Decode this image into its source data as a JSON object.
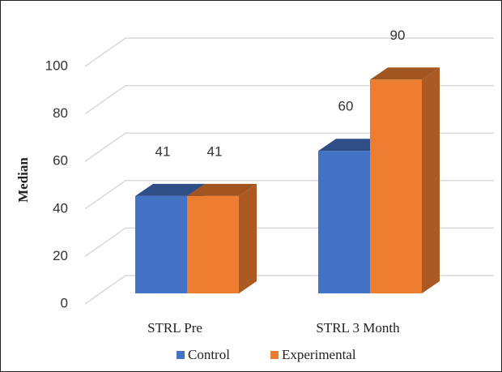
{
  "chart_data": {
    "type": "bar3d",
    "y_label": "Median",
    "categories": [
      "STRL Pre",
      "STRL 3 Month"
    ],
    "series": [
      {
        "name": "Control",
        "color": "#4472c4",
        "values": [
          41,
          60
        ]
      },
      {
        "name": "Experimental",
        "color": "#ed7d31",
        "values": [
          41,
          90
        ]
      }
    ],
    "ylim": [
      0,
      100
    ],
    "yticks": [
      0,
      20,
      40,
      60,
      80,
      100
    ],
    "grid": true
  }
}
